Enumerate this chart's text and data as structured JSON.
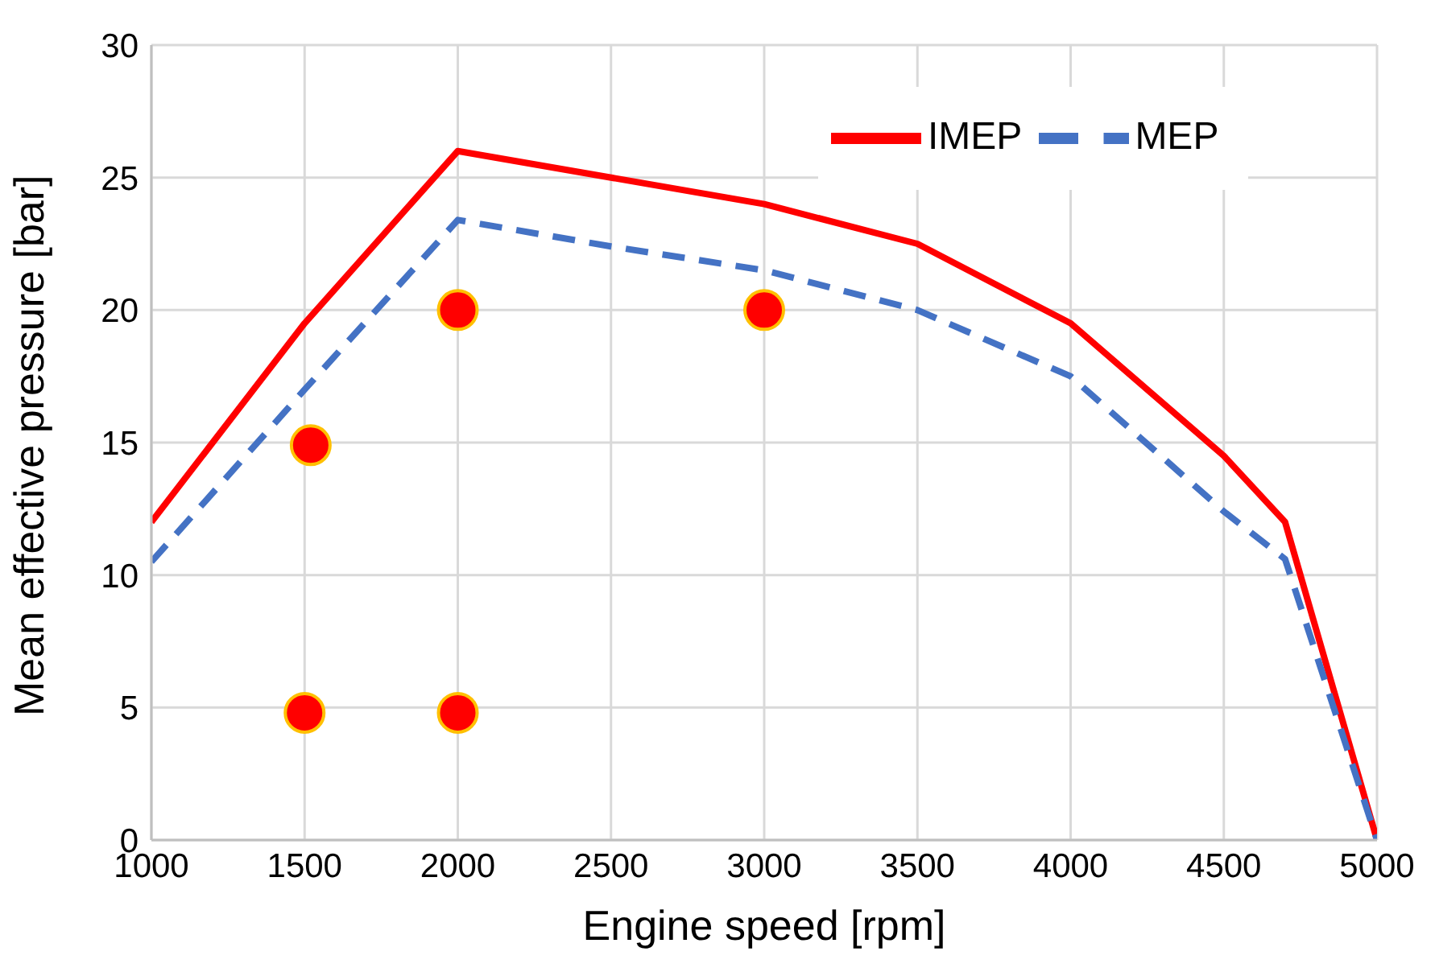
{
  "chart_data": {
    "type": "line",
    "xlabel": "Engine speed [rpm]",
    "ylabel": "Mean effective pressure [bar]",
    "xlim": [
      1000,
      5000
    ],
    "xticks": [
      1000,
      1500,
      2000,
      2500,
      3000,
      3500,
      4000,
      4500,
      5000
    ],
    "ylim": [
      0,
      30
    ],
    "yticks": [
      0,
      5,
      10,
      15,
      20,
      25,
      30
    ],
    "grid": true,
    "legend": "top right",
    "marker": "none",
    "series": [
      {
        "name": "IMEP",
        "color": "#ff0000",
        "line_style": "solid",
        "x": [
          1000,
          1500,
          2000,
          3000,
          3500,
          4000,
          4500,
          4700,
          5000
        ],
        "values": [
          12,
          19.5,
          26,
          24,
          22.5,
          19.5,
          14.5,
          12,
          0
        ]
      },
      {
        "name": "MEP",
        "color": "#4472c4",
        "line_style": "dashed",
        "x": [
          1000,
          1500,
          2000,
          2500,
          3000,
          3500,
          4000,
          4500,
          4700,
          5000
        ],
        "values": [
          10.5,
          17,
          23.4,
          22.4,
          21.5,
          20,
          17.5,
          12.4,
          10.6,
          0
        ]
      },
      {
        "type": "scatter",
        "color": "#ff0000",
        "marker": "circle",
        "x": [
          1500,
          1520,
          2000,
          2000,
          3000
        ],
        "values": [
          4.8,
          14.9,
          20,
          4.8,
          20
        ]
      }
    ]
  }
}
